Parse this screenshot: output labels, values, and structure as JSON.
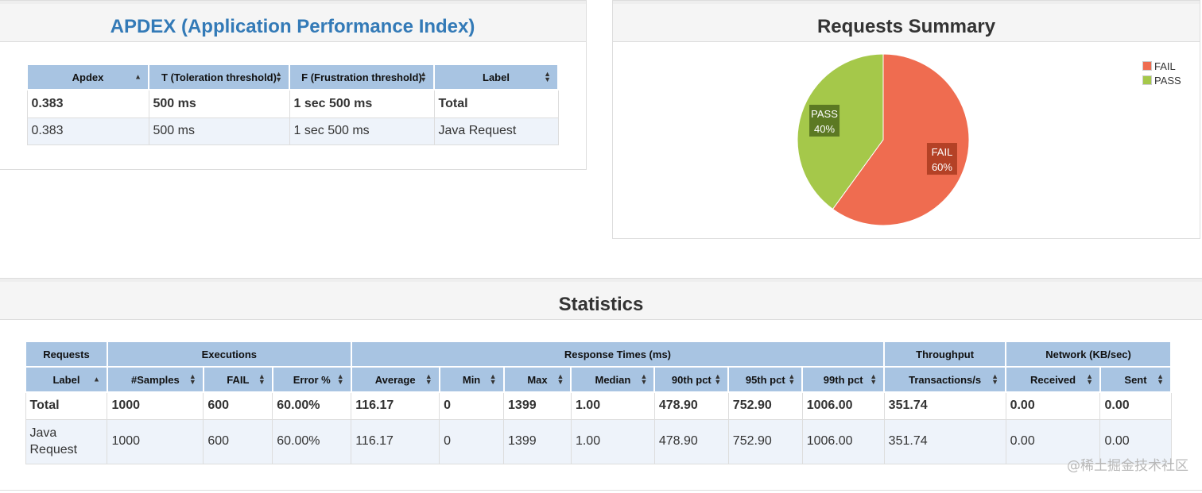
{
  "apdex": {
    "title": "APDEX (Application Performance Index)",
    "headers": [
      "Apdex",
      "T (Toleration threshold)",
      "F (Frustration threshold)",
      "Label"
    ],
    "rows": [
      {
        "apdex": "0.383",
        "t": "500 ms",
        "f": "1 sec 500 ms",
        "label": "Total"
      },
      {
        "apdex": "0.383",
        "t": "500 ms",
        "f": "1 sec 500 ms",
        "label": "Java Request"
      }
    ]
  },
  "summary": {
    "title": "Requests Summary",
    "legend": [
      {
        "name": "FAIL",
        "color": "#ef6c50"
      },
      {
        "name": "PASS",
        "color": "#a5c84a"
      }
    ],
    "slice_labels": {
      "fail": {
        "name": "FAIL",
        "pct": "60%"
      },
      "pass": {
        "name": "PASS",
        "pct": "40%"
      }
    }
  },
  "chart_data": {
    "type": "pie",
    "categories": [
      "FAIL",
      "PASS"
    ],
    "values": [
      60,
      40
    ],
    "colors": [
      "#ef6c50",
      "#a5c84a"
    ],
    "title": "Requests Summary",
    "legend": "top-right"
  },
  "statistics": {
    "title": "Statistics",
    "groups": [
      "Requests",
      "Executions",
      "Response Times (ms)",
      "Throughput",
      "Network (KB/sec)"
    ],
    "columns": [
      "Label",
      "#Samples",
      "FAIL",
      "Error %",
      "Average",
      "Min",
      "Max",
      "Median",
      "90th pct",
      "95th pct",
      "99th pct",
      "Transactions/s",
      "Received",
      "Sent"
    ],
    "rows": [
      [
        "Total",
        "1000",
        "600",
        "60.00%",
        "116.17",
        "0",
        "1399",
        "1.00",
        "478.90",
        "752.90",
        "1006.00",
        "351.74",
        "0.00",
        "0.00"
      ],
      [
        "Java Request",
        "1000",
        "600",
        "60.00%",
        "116.17",
        "0",
        "1399",
        "1.00",
        "478.90",
        "752.90",
        "1006.00",
        "351.74",
        "0.00",
        "0.00"
      ]
    ]
  },
  "watermark": "@稀土掘金技术社区"
}
